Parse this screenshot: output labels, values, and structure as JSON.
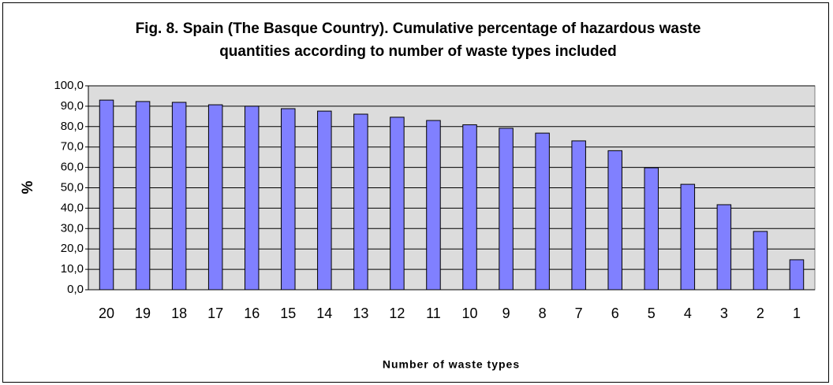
{
  "chart_data": {
    "type": "bar",
    "title": "Fig. 8. Spain (The Basque Country). Cumulative percentage of hazardous waste quantities according to number of waste types included",
    "x_label": "Number of waste types",
    "y_label": "%",
    "categories": [
      "20",
      "19",
      "18",
      "17",
      "16",
      "15",
      "14",
      "13",
      "12",
      "11",
      "10",
      "9",
      "8",
      "7",
      "6",
      "5",
      "4",
      "3",
      "2",
      "1"
    ],
    "values": [
      93.0,
      92.3,
      91.9,
      90.7,
      90.0,
      88.8,
      87.6,
      86.1,
      84.6,
      83.0,
      80.9,
      79.2,
      76.8,
      73.0,
      68.2,
      59.8,
      51.7,
      41.7,
      28.6,
      14.7
    ],
    "color": "#8080ff",
    "ylim": [
      0,
      100
    ],
    "yticks": [
      {
        "value": 0,
        "label": "0,0"
      },
      {
        "value": 10,
        "label": "10,0"
      },
      {
        "value": 20,
        "label": "20,0"
      },
      {
        "value": 30,
        "label": "30,0"
      },
      {
        "value": 40,
        "label": "40,0"
      },
      {
        "value": 50,
        "label": "50,0"
      },
      {
        "value": 60,
        "label": "60,0"
      },
      {
        "value": 70,
        "label": "70,0"
      },
      {
        "value": 80,
        "label": "80,0"
      },
      {
        "value": 90,
        "label": "90,0"
      },
      {
        "value": 100,
        "label": "100,0"
      }
    ],
    "grid": true
  }
}
